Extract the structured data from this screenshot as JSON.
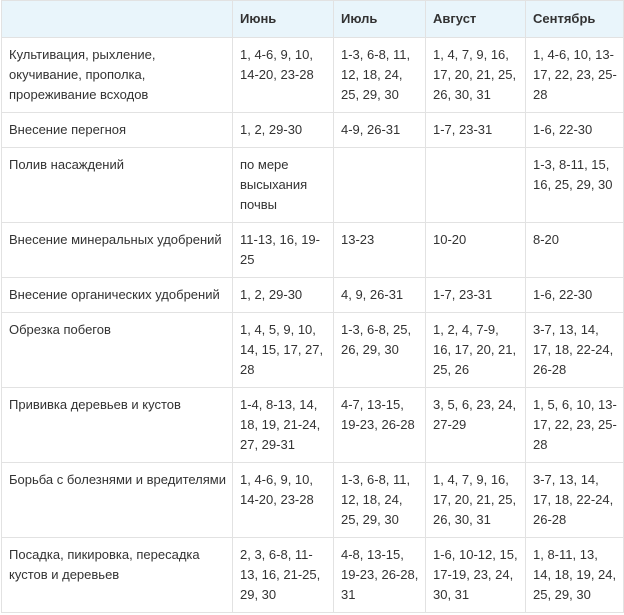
{
  "table": {
    "header": [
      "",
      "Июнь",
      "Июль",
      "Август",
      "Сентябрь"
    ],
    "rows": [
      [
        "Культивация, рыхление, окучивание, прополка, прореживание всходов",
        "1, 4-6, 9, 10, 14-20, 23-28",
        "1-3, 6-8, 11, 12, 18, 24, 25, 29, 30",
        "1, 4, 7, 9, 16, 17, 20, 21, 25, 26, 30, 31",
        "1, 4-6, 10, 13-17, 22, 23, 25-28"
      ],
      [
        "Внесение перегноя",
        "1, 2, 29-30",
        "4-9, 26-31",
        "1-7, 23-31",
        "1-6, 22-30"
      ],
      [
        "Полив насаждений",
        "по мере высыхания почвы",
        null,
        null,
        "1-3, 8-11, 15, 16, 25, 29, 30"
      ],
      [
        "Внесение минеральных удобрений",
        "11-13, 16, 19-25",
        "13-23",
        "10-20",
        "8-20"
      ],
      [
        "Внесение органических удобрений",
        "1, 2, 29-30",
        "4, 9, 26-31",
        "1-7, 23-31",
        "1-6, 22-30"
      ],
      [
        "Обрезка побегов",
        "1, 4, 5, 9, 10, 14, 15, 17, 27, 28",
        "1-3, 6-8, 25, 26, 29, 30",
        "1, 2, 4, 7-9, 16, 17, 20, 21, 25, 26",
        "3-7, 13, 14, 17, 18, 22-24, 26-28"
      ],
      [
        "Прививка деревьев и кустов",
        "1-4, 8-13, 14, 18, 19, 21-24, 27, 29-31",
        "4-7, 13-15, 19-23, 26-28",
        "3, 5, 6, 23, 24, 27-29",
        "1, 5, 6, 10, 13-17, 22, 23, 25-28"
      ],
      [
        "Борьба с болезнями и вредителями",
        "1, 4-6, 9, 10, 14-20, 23-28",
        "1-3, 6-8, 11, 12, 18, 24, 25, 29, 30",
        "1, 4, 7, 9, 16, 17, 20, 21, 25, 26, 30, 31",
        "3-7, 13, 14, 17, 18, 22-24, 26-28"
      ],
      [
        "Посадка, пикировка, пересадка кустов и деревьев",
        "2, 3, 6-8, 11-13, 16, 21-25, 29, 30",
        "4-8, 13-15, 19-23, 26-28, 31",
        "1-6, 10-12, 15, 17-19, 23, 24, 30, 31",
        "1, 8-11, 13, 14, 18, 19, 24, 25, 29, 30"
      ]
    ]
  }
}
